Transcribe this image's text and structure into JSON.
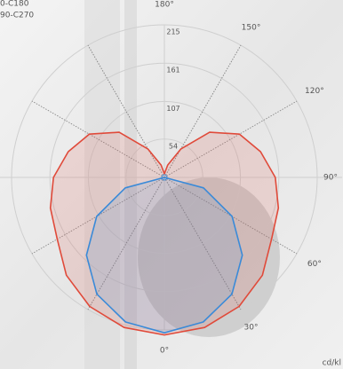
{
  "chart_data": {
    "type": "polar",
    "unit_label": "cd/kl",
    "angles": [
      0,
      15,
      30,
      45,
      60,
      75,
      90,
      105,
      120,
      135,
      150,
      165,
      180,
      195,
      210,
      225,
      240,
      255,
      270,
      285,
      300,
      315,
      330,
      345
    ],
    "series": [
      {
        "name": "0-C180",
        "color": "#e04a3a",
        "values": [
          222,
          219,
          210,
          195,
          174,
          166,
          156,
          140,
          122,
          90,
          46,
          18,
          5,
          18,
          46,
          90,
          122,
          140,
          156,
          166,
          174,
          195,
          210,
          219
        ]
      },
      {
        "name": "90-C270",
        "color": "#3a8ad8",
        "values": [
          219,
          211,
          190,
          155,
          110,
          57,
          0,
          0,
          0,
          0,
          0,
          0,
          0,
          0,
          0,
          0,
          0,
          0,
          0,
          57,
          110,
          155,
          190,
          211
        ]
      }
    ],
    "rlim": [
      0,
      215
    ],
    "rticks": [
      54,
      107,
      161,
      215
    ],
    "thetaticks": [
      {
        "value": 0,
        "label": "0°"
      },
      {
        "value": 30,
        "label": "30°"
      },
      {
        "value": 60,
        "label": "60°"
      },
      {
        "value": 90,
        "label": "90°"
      },
      {
        "value": 120,
        "label": "120°"
      },
      {
        "value": 150,
        "label": "150°"
      },
      {
        "value": 180,
        "label": "180°"
      }
    ],
    "grid": true
  }
}
